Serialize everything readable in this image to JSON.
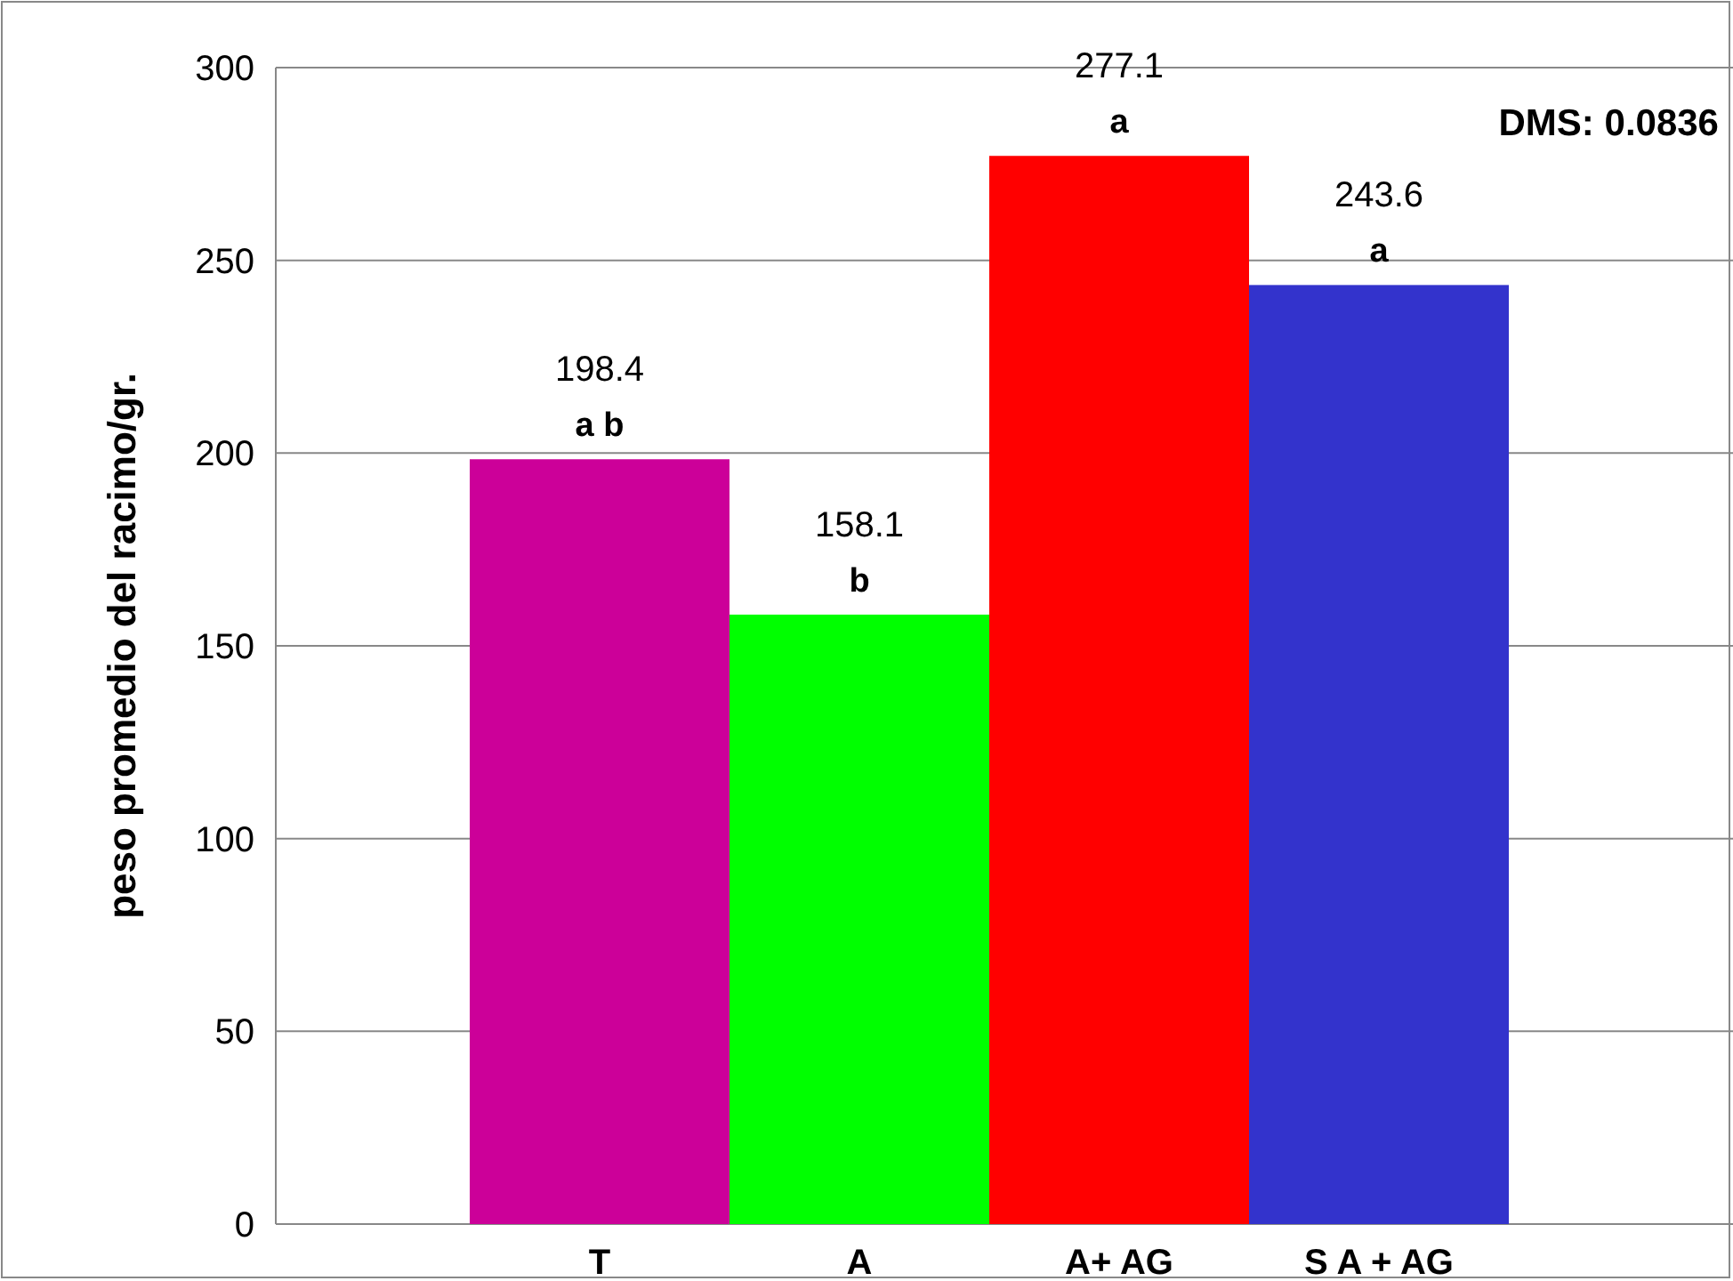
{
  "chart_data": {
    "type": "bar",
    "ylabel": "peso promedio del racimo/gr.",
    "categories": [
      "T",
      "A",
      "A+ AG",
      "S A + AG"
    ],
    "values": [
      198.4,
      158.1,
      277.1,
      243.6
    ],
    "colors": [
      "#cc0099",
      "#00ff00",
      "#ff0000",
      "#3333cc"
    ],
    "ylim": [
      0,
      300
    ],
    "yticks": [
      0,
      50,
      100,
      150,
      200,
      250,
      300
    ],
    "grid": "y",
    "data_labels": true,
    "annotations": [
      {
        "text": "a b",
        "x": "T",
        "y": 198.4
      },
      {
        "text": "b",
        "x": "A",
        "y": 158.1
      },
      {
        "text": "a",
        "x": "A+ AG",
        "y": 277.1
      },
      {
        "text": "a",
        "x": "S A + AG",
        "y": 243.6
      },
      "DMS: 0.0836"
    ]
  }
}
